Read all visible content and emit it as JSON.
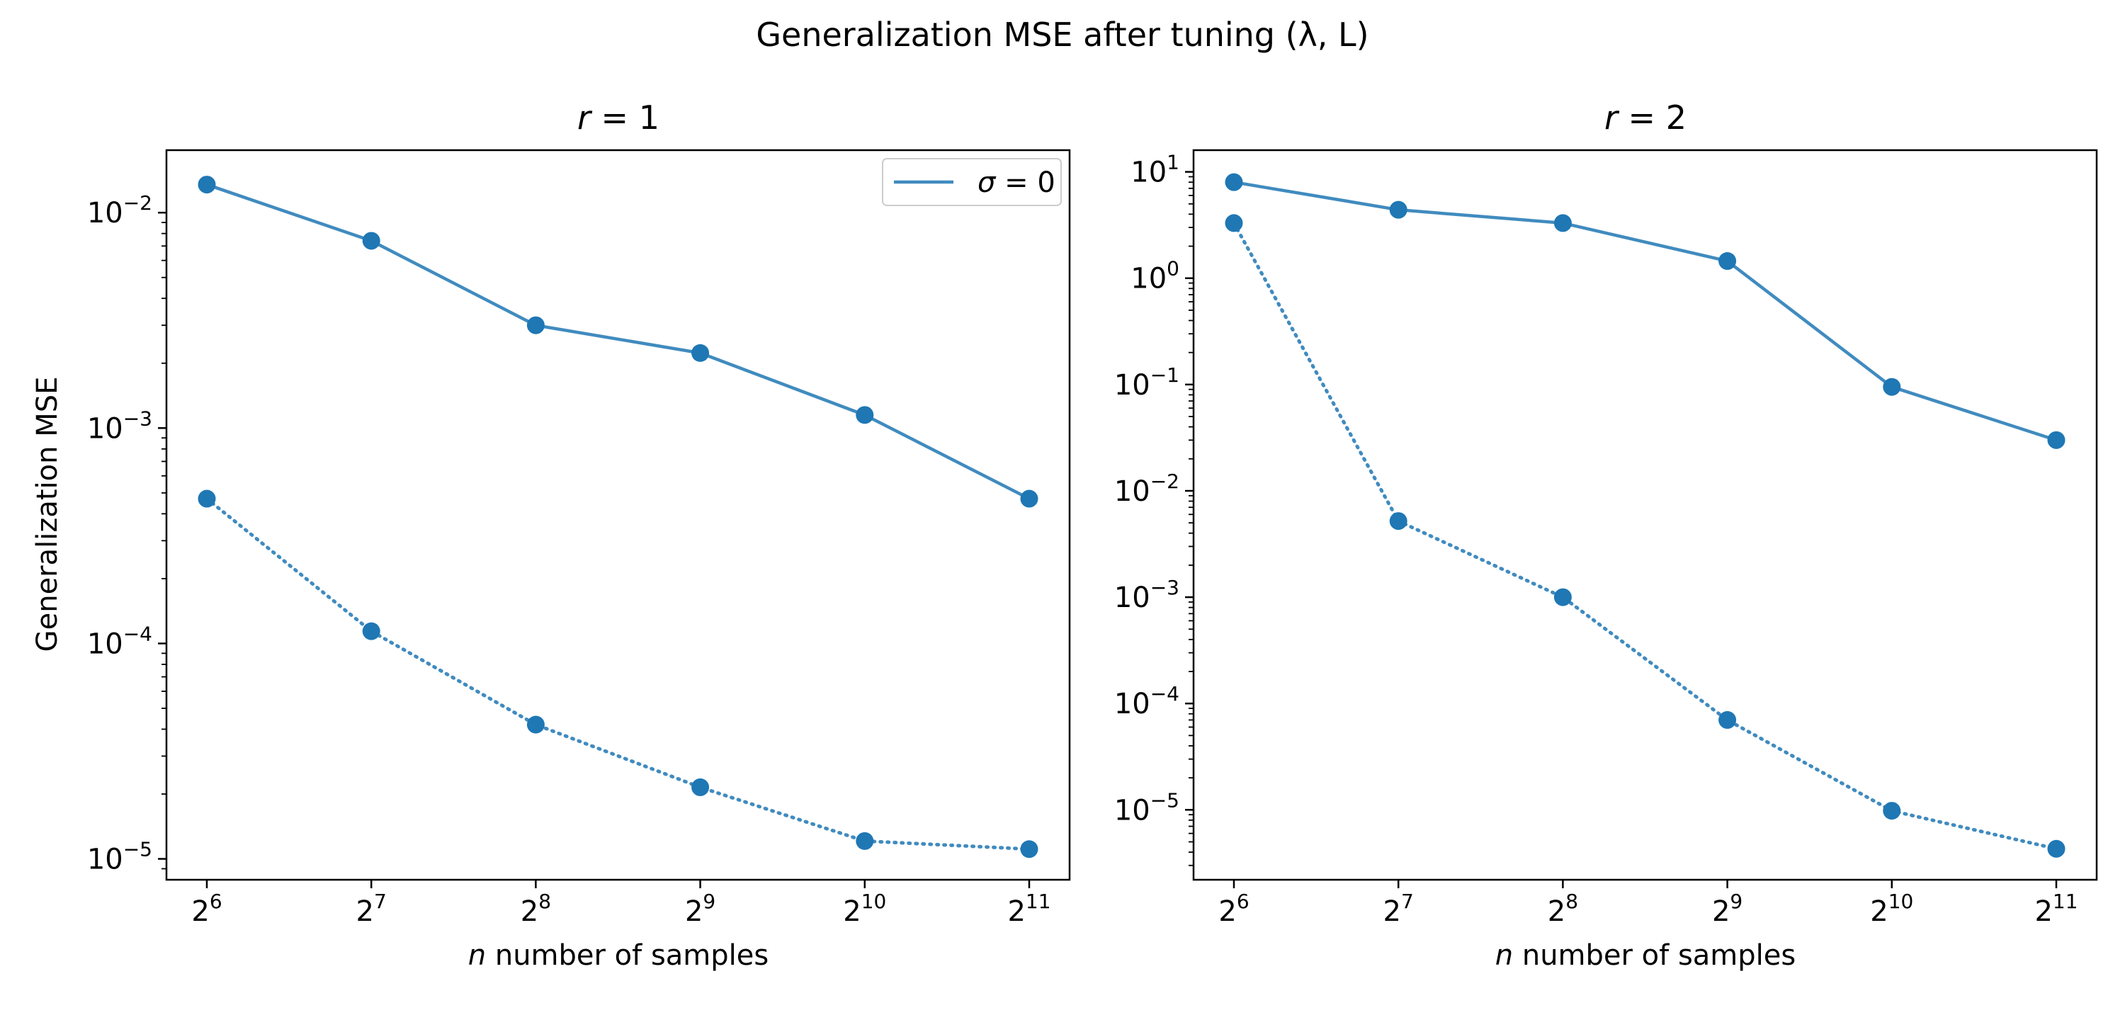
{
  "figure": {
    "suptitle": "Generalization MSE after tuning (λ, L)",
    "colors": {
      "series": "#1f77b4",
      "frame": "#000000",
      "background": "#ffffff"
    }
  },
  "chart_data": [
    {
      "type": "line",
      "title_var": "r",
      "title_value": "1",
      "xlabel_var": "n",
      "xlabel_text": " number of samples",
      "ylabel": "Generalization MSE",
      "x_scale": "log2",
      "y_scale": "log10",
      "x": [
        64,
        128,
        256,
        512,
        1024,
        2048
      ],
      "xticks": [
        {
          "base": "2",
          "exp": "6"
        },
        {
          "base": "2",
          "exp": "7"
        },
        {
          "base": "2",
          "exp": "8"
        },
        {
          "base": "2",
          "exp": "9"
        },
        {
          "base": "2",
          "exp": "10"
        },
        {
          "base": "2",
          "exp": "11"
        }
      ],
      "yticks": [
        {
          "base": "10",
          "exp": "−5",
          "value": 1e-05
        },
        {
          "base": "10",
          "exp": "−4",
          "value": 0.0001
        },
        {
          "base": "10",
          "exp": "−3",
          "value": 0.001
        },
        {
          "base": "10",
          "exp": "−2",
          "value": 0.01
        }
      ],
      "ylim": [
        8e-06,
        0.0195
      ],
      "legend": {
        "position": "top-right",
        "entries": [
          {
            "var": "σ",
            "value": "0",
            "style": "solid"
          }
        ]
      },
      "series": [
        {
          "name": "σ = 0",
          "style": "solid",
          "values": [
            0.0135,
            0.0074,
            0.003,
            0.00223,
            0.00115,
            0.00047
          ]
        },
        {
          "style": "dotted",
          "values": [
            0.00047,
            0.000114,
            4.2e-05,
            2.15e-05,
            1.21e-05,
            1.11e-05
          ]
        }
      ]
    },
    {
      "type": "line",
      "title_var": "r",
      "title_value": "2",
      "xlabel_var": "n",
      "xlabel_text": " number of samples",
      "ylabel": "",
      "x_scale": "log2",
      "y_scale": "log10",
      "x": [
        64,
        128,
        256,
        512,
        1024,
        2048
      ],
      "xticks": [
        {
          "base": "2",
          "exp": "6"
        },
        {
          "base": "2",
          "exp": "7"
        },
        {
          "base": "2",
          "exp": "8"
        },
        {
          "base": "2",
          "exp": "9"
        },
        {
          "base": "2",
          "exp": "10"
        },
        {
          "base": "2",
          "exp": "11"
        }
      ],
      "yticks": [
        {
          "base": "10",
          "exp": "−5",
          "value": 1e-05
        },
        {
          "base": "10",
          "exp": "−4",
          "value": 0.0001
        },
        {
          "base": "10",
          "exp": "−3",
          "value": 0.001
        },
        {
          "base": "10",
          "exp": "−2",
          "value": 0.01
        },
        {
          "base": "10",
          "exp": "−1",
          "value": 0.1
        },
        {
          "base": "10",
          "exp": "0",
          "value": 1
        },
        {
          "base": "10",
          "exp": "1",
          "value": 10
        }
      ],
      "ylim": [
        2.2e-06,
        16
      ],
      "legend": null,
      "series": [
        {
          "style": "solid",
          "values": [
            8.0,
            4.4,
            3.3,
            1.45,
            0.095,
            0.03
          ]
        },
        {
          "style": "dotted",
          "values": [
            3.3,
            0.0052,
            0.001,
            7e-05,
            9.8e-06,
            4.3e-06
          ]
        }
      ]
    }
  ]
}
